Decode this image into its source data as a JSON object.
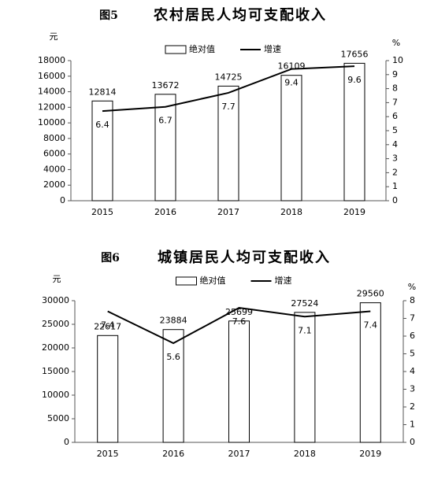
{
  "chart_data": [
    {
      "type": "combo",
      "figure_label": "图5",
      "title": "农村居民人均可支配收入",
      "y_label": "元",
      "y2_label": "%",
      "categories": [
        "2015",
        "2016",
        "2017",
        "2018",
        "2019"
      ],
      "series": [
        {
          "name": "绝对值",
          "type": "bar",
          "color": "#ffffff",
          "values": [
            12814,
            13672,
            14725,
            16109,
            17656
          ]
        },
        {
          "name": "增速",
          "type": "line",
          "axis": "y2",
          "color": "#000000",
          "values": [
            6.4,
            6.7,
            7.7,
            9.4,
            9.6
          ]
        }
      ],
      "ylim": [
        0,
        18000
      ],
      "yticks": [
        0,
        2000,
        4000,
        6000,
        8000,
        10000,
        12000,
        14000,
        16000,
        18000
      ],
      "y2lim": [
        0,
        10
      ],
      "y2ticks": [
        0,
        1,
        2,
        3,
        4,
        5,
        6,
        7,
        8,
        9,
        10
      ],
      "legend": "top"
    },
    {
      "type": "combo",
      "figure_label": "图6",
      "title": "城镇居民人均可支配收入",
      "y_label": "元",
      "y2_label": "%",
      "categories": [
        "2015",
        "2016",
        "2017",
        "2018",
        "2019"
      ],
      "series": [
        {
          "name": "绝对值",
          "type": "bar",
          "color": "#ffffff",
          "values": [
            22617,
            23884,
            25699,
            27524,
            29560
          ]
        },
        {
          "name": "增速",
          "type": "line",
          "axis": "y2",
          "color": "#000000",
          "values": [
            7.4,
            5.6,
            7.6,
            7.1,
            7.4
          ]
        }
      ],
      "ylim": [
        0,
        30000
      ],
      "yticks": [
        0,
        5000,
        10000,
        15000,
        20000,
        25000,
        30000
      ],
      "y2lim": [
        0,
        8
      ],
      "y2ticks": [
        0,
        1,
        2,
        3,
        4,
        5,
        6,
        7,
        8
      ],
      "legend": "top"
    }
  ]
}
